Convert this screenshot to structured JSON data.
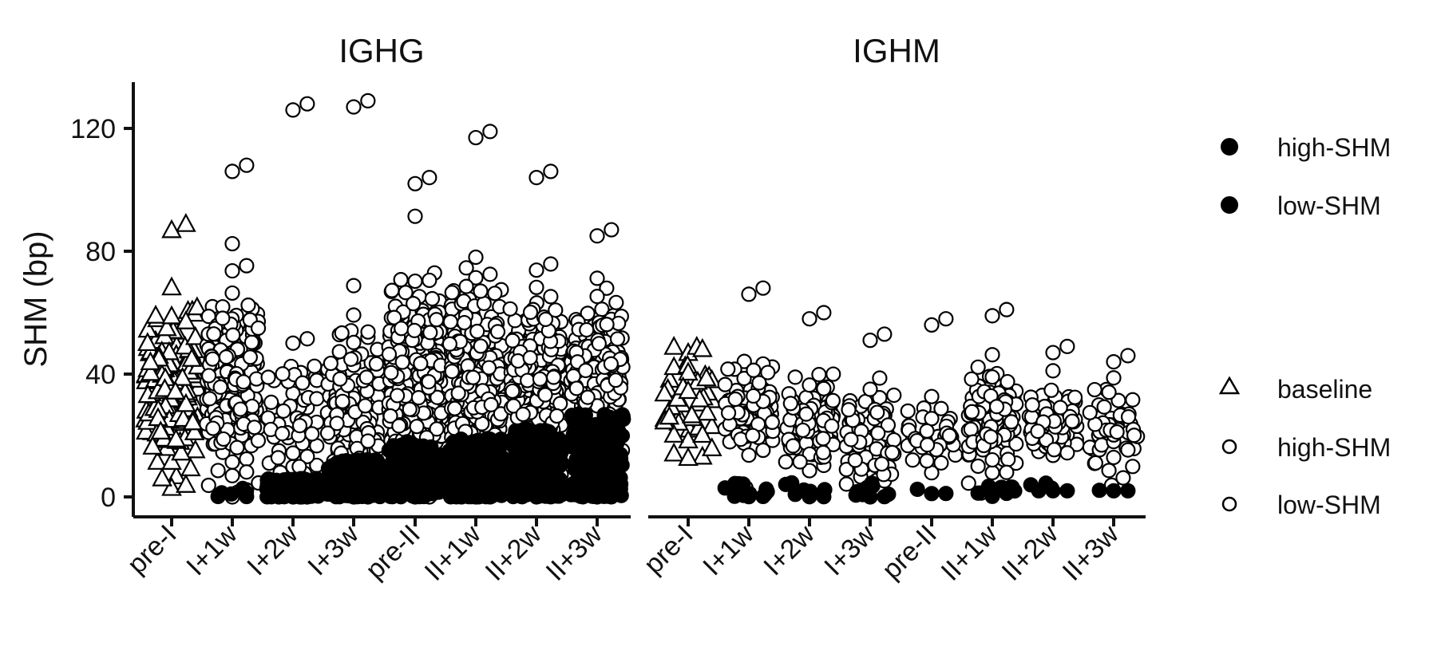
{
  "chart_data": {
    "type": "scatter",
    "subtype": "beeswarm",
    "ylabel": "SHM (bp)",
    "ylim": [
      -5,
      135
    ],
    "yticks": [
      0,
      40,
      80,
      120
    ],
    "categories": [
      "pre-I",
      "I+1w",
      "I+2w",
      "I+3w",
      "pre-II",
      "II+1w",
      "II+2w",
      "II+3w"
    ],
    "legend": {
      "position": "right",
      "fill_group": [
        "high-SHM",
        "low-SHM"
      ],
      "shape_group": [
        {
          "label": "baseline",
          "shape": "triangle"
        },
        {
          "label": "high-SHM",
          "shape": "circle"
        },
        {
          "label": "low-SHM",
          "shape": "circle"
        }
      ]
    },
    "panels": [
      {
        "title": "IGHG",
        "groups": [
          {
            "x": "pre-I",
            "shape": "triangle",
            "fill": "open",
            "n": 160,
            "min": 0,
            "max": 89,
            "median": 35,
            "spread": 22
          },
          {
            "x": "I+1w",
            "shape": "circle",
            "fill": "mixed",
            "n": 260,
            "min": 0,
            "max": 108,
            "median": 38,
            "spread": 23,
            "low_n": 6,
            "low_max": 4
          },
          {
            "x": "I+2w",
            "shape": "circle",
            "fill": "mixed",
            "n": 190,
            "min": 0,
            "max": 128,
            "median": 20,
            "spread": 28,
            "low_n": 130,
            "low_max": 6
          },
          {
            "x": "I+3w",
            "shape": "circle",
            "fill": "mixed",
            "n": 300,
            "min": 0,
            "max": 129,
            "median": 30,
            "spread": 22,
            "low_n": 170,
            "low_max": 12
          },
          {
            "x": "pre-II",
            "shape": "circle",
            "fill": "mixed",
            "n": 480,
            "min": 0,
            "max": 104,
            "median": 40,
            "spread": 22,
            "low_n": 150,
            "low_max": 18
          },
          {
            "x": "II+1w",
            "shape": "circle",
            "fill": "mixed",
            "n": 500,
            "min": 0,
            "max": 119,
            "median": 36,
            "spread": 24,
            "low_n": 280,
            "low_max": 19
          },
          {
            "x": "II+2w",
            "shape": "circle",
            "fill": "mixed",
            "n": 440,
            "min": 0,
            "max": 106,
            "median": 40,
            "spread": 18,
            "low_n": 230,
            "low_max": 22
          },
          {
            "x": "II+3w",
            "shape": "circle",
            "fill": "mixed",
            "n": 380,
            "min": 0,
            "max": 87,
            "median": 40,
            "spread": 17,
            "low_n": 170,
            "low_max": 27
          }
        ]
      },
      {
        "title": "IGHM",
        "groups": [
          {
            "x": "pre-I",
            "shape": "triangle",
            "fill": "open",
            "n": 45,
            "min": 5,
            "max": 49,
            "median": 30,
            "spread": 15
          },
          {
            "x": "I+1w",
            "shape": "circle",
            "fill": "mixed",
            "n": 110,
            "min": 0,
            "max": 68,
            "median": 28,
            "spread": 13,
            "low_n": 14,
            "low_max": 5
          },
          {
            "x": "I+2w",
            "shape": "circle",
            "fill": "mixed",
            "n": 90,
            "min": 0,
            "max": 60,
            "median": 24,
            "spread": 13,
            "low_n": 8,
            "low_max": 5
          },
          {
            "x": "I+3w",
            "shape": "circle",
            "fill": "mixed",
            "n": 95,
            "min": 0,
            "max": 53,
            "median": 20,
            "spread": 12,
            "low_n": 10,
            "low_max": 5
          },
          {
            "x": "pre-II",
            "shape": "circle",
            "fill": "mixed",
            "n": 40,
            "min": 0,
            "max": 58,
            "median": 20,
            "spread": 10,
            "low_n": 3,
            "low_max": 4
          },
          {
            "x": "II+1w",
            "shape": "circle",
            "fill": "mixed",
            "n": 110,
            "min": 0,
            "max": 61,
            "median": 24,
            "spread": 14,
            "low_n": 8,
            "low_max": 4
          },
          {
            "x": "II+2w",
            "shape": "circle",
            "fill": "mixed",
            "n": 90,
            "min": 2,
            "max": 49,
            "median": 24,
            "spread": 11,
            "low_n": 6,
            "low_max": 6
          },
          {
            "x": "II+3w",
            "shape": "circle",
            "fill": "mixed",
            "n": 55,
            "min": 2,
            "max": 46,
            "median": 22,
            "spread": 10,
            "low_n": 3,
            "low_max": 4
          }
        ]
      }
    ]
  }
}
